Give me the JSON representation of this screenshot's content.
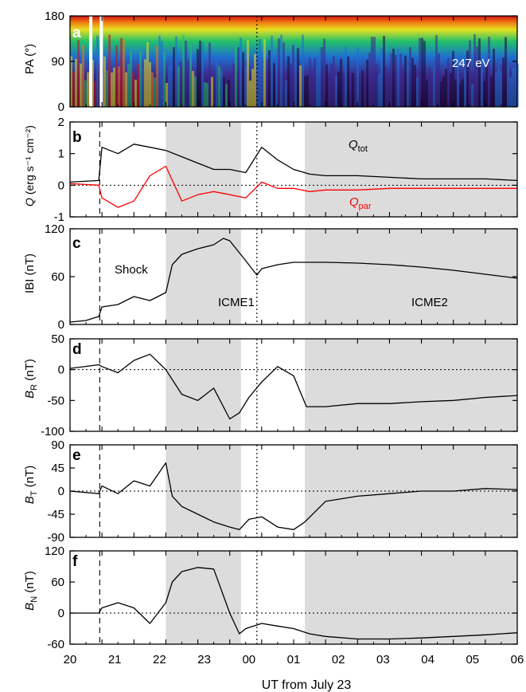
{
  "figure": {
    "xlabel": "UT from July 23",
    "x_tick_labels": [
      "20",
      "21",
      "22",
      "23",
      "00",
      "01",
      "02",
      "03",
      "04",
      "05",
      "06"
    ],
    "x_range_hours": [
      20,
      34
    ],
    "shock_time": 20.93,
    "dotted_time": 25.85,
    "shaded_intervals": [
      [
        23.0,
        25.35
      ],
      [
        27.35,
        34.0
      ]
    ],
    "colors": {
      "shade": "#dcdcdc",
      "trace": "#000000",
      "q_par": "#ff0000"
    }
  },
  "annotations": {
    "shock": "Shock",
    "icme1": "ICME1",
    "icme2": "ICME2",
    "energy": "247 eV",
    "q_tot_main": "Q",
    "q_tot_sub": "tot",
    "q_par_main": "Q",
    "q_par_sub": "par"
  },
  "chart_data": [
    {
      "panel": "a",
      "type": "heatmap",
      "ylabel": "PA (°)",
      "yticks": [
        0,
        90,
        180
      ],
      "ylim": [
        0,
        180
      ],
      "annotation": "247 eV"
    },
    {
      "panel": "b",
      "type": "line",
      "ylabel_main": "Q",
      "ylabel_rest": " (erg s⁻¹ cm⁻²)",
      "yticks": [
        -1,
        0,
        1,
        2
      ],
      "ylim": [
        -1,
        2
      ],
      "series": [
        {
          "name": "Q_tot",
          "color": "#000000",
          "x": [
            20.0,
            20.9,
            21.0,
            21.5,
            22.0,
            22.5,
            23.0,
            23.5,
            24.0,
            24.5,
            25.0,
            25.5,
            26.0,
            26.5,
            27.0,
            27.5,
            28.0,
            29.0,
            30.0,
            31.0,
            32.0,
            33.0,
            34.0
          ],
          "y": [
            0.1,
            0.15,
            1.2,
            1.0,
            1.3,
            1.2,
            1.1,
            0.9,
            0.7,
            0.5,
            0.5,
            0.4,
            1.2,
            0.8,
            0.5,
            0.35,
            0.3,
            0.3,
            0.25,
            0.2,
            0.2,
            0.2,
            0.15
          ]
        },
        {
          "name": "Q_par",
          "color": "#ff0000",
          "x": [
            20.0,
            20.9,
            21.0,
            21.5,
            22.0,
            22.5,
            23.0,
            23.5,
            24.0,
            24.5,
            25.0,
            25.5,
            26.0,
            26.5,
            27.0,
            27.5,
            28.0,
            29.0,
            30.0,
            31.0,
            32.0,
            33.0,
            34.0
          ],
          "y": [
            0.05,
            0.0,
            -0.4,
            -0.7,
            -0.5,
            0.3,
            0.6,
            -0.5,
            -0.3,
            -0.2,
            -0.3,
            -0.4,
            0.1,
            -0.1,
            -0.1,
            -0.2,
            -0.15,
            -0.15,
            -0.1,
            -0.1,
            -0.1,
            -0.1,
            -0.1
          ]
        }
      ]
    },
    {
      "panel": "c",
      "type": "line",
      "ylabel": "IBI (nT)",
      "yticks": [
        0,
        60,
        120
      ],
      "ylim": [
        0,
        120
      ],
      "x": [
        20.0,
        20.5,
        20.9,
        21.0,
        21.5,
        22.0,
        22.5,
        23.0,
        23.2,
        23.5,
        24.0,
        24.5,
        24.8,
        25.0,
        25.5,
        25.85,
        26.0,
        26.5,
        27.0,
        27.5,
        28.0,
        29.0,
        30.0,
        31.0,
        32.0,
        33.0,
        34.0
      ],
      "y": [
        3,
        5,
        10,
        22,
        25,
        35,
        30,
        40,
        75,
        88,
        95,
        100,
        108,
        105,
        80,
        62,
        70,
        75,
        78,
        78,
        78,
        77,
        75,
        72,
        68,
        63,
        58
      ]
    },
    {
      "panel": "d",
      "type": "line",
      "ylabel_main": "B",
      "ylabel_sub": "R",
      "ylabel_rest": " (nT)",
      "yticks": [
        -100,
        -50,
        0,
        50
      ],
      "ylim": [
        -100,
        50
      ],
      "x": [
        20.0,
        20.9,
        21.0,
        21.5,
        22.0,
        22.5,
        23.0,
        23.5,
        24.0,
        24.5,
        25.0,
        25.3,
        25.6,
        26.0,
        26.5,
        27.0,
        27.4,
        28.0,
        29.0,
        30.0,
        31.0,
        32.0,
        33.0,
        34.0
      ],
      "y": [
        2,
        8,
        5,
        -5,
        15,
        25,
        0,
        -40,
        -50,
        -30,
        -80,
        -70,
        -45,
        -20,
        5,
        -10,
        -60,
        -60,
        -55,
        -55,
        -52,
        -50,
        -45,
        -42
      ]
    },
    {
      "panel": "e",
      "type": "line",
      "ylabel_main": "B",
      "ylabel_sub": "T",
      "ylabel_rest": " (nT)",
      "yticks": [
        -90,
        -45,
        0,
        45,
        90
      ],
      "ylim": [
        -90,
        90
      ],
      "x": [
        20.0,
        20.9,
        21.0,
        21.5,
        22.0,
        22.5,
        23.0,
        23.2,
        23.5,
        24.0,
        24.5,
        25.0,
        25.3,
        25.6,
        26.0,
        26.5,
        27.0,
        27.35,
        28.0,
        29.0,
        30.0,
        31.0,
        32.0,
        33.0,
        34.0
      ],
      "y": [
        0,
        -5,
        10,
        -5,
        20,
        10,
        55,
        -10,
        -30,
        -45,
        -60,
        -70,
        -75,
        -55,
        -50,
        -70,
        -75,
        -60,
        -20,
        -10,
        -5,
        0,
        0,
        5,
        3
      ]
    },
    {
      "panel": "f",
      "type": "line",
      "ylabel_main": "B",
      "ylabel_sub": "N",
      "ylabel_rest": " (nT)",
      "yticks": [
        -60,
        0,
        60,
        120
      ],
      "ylim": [
        -60,
        120
      ],
      "x": [
        20.0,
        20.9,
        21.0,
        21.5,
        22.0,
        22.5,
        23.0,
        23.2,
        23.5,
        24.0,
        24.5,
        25.0,
        25.3,
        25.5,
        26.0,
        26.5,
        27.0,
        27.5,
        28.0,
        29.0,
        30.0,
        31.0,
        32.0,
        33.0,
        34.0
      ],
      "y": [
        0,
        0,
        10,
        20,
        10,
        -20,
        20,
        60,
        80,
        88,
        85,
        0,
        -40,
        -30,
        -20,
        -25,
        -30,
        -40,
        -45,
        -50,
        -50,
        -48,
        -45,
        -42,
        -38
      ]
    }
  ]
}
